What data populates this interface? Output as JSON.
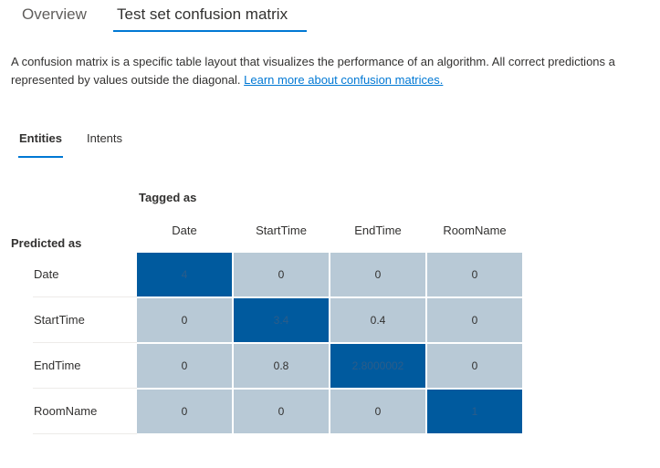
{
  "top_tabs": {
    "overview": "Overview",
    "confusion": "Test set confusion matrix"
  },
  "description": {
    "line1": "A confusion matrix is a specific table layout that visualizes the performance of an algorithm. All correct predictions a",
    "line2": "represented by values outside the diagonal.",
    "link": "Learn more about confusion matrices."
  },
  "sub_tabs": {
    "entities": "Entities",
    "intents": "Intents"
  },
  "matrix": {
    "tagged_as_label": "Tagged as",
    "predicted_as_label": "Predicted as",
    "columns": [
      "Date",
      "StartTime",
      "EndTime",
      "RoomName"
    ],
    "rows": [
      {
        "label": "Date",
        "values": [
          "4",
          "0",
          "0",
          "0"
        ]
      },
      {
        "label": "StartTime",
        "values": [
          "0",
          "3.4",
          "0.4",
          "0"
        ]
      },
      {
        "label": "EndTime",
        "values": [
          "0",
          "0.8",
          "2.8000002",
          "0"
        ]
      },
      {
        "label": "RoomName",
        "values": [
          "0",
          "0",
          "0",
          "1"
        ]
      }
    ],
    "colors": {
      "diagonal": "#005a9e",
      "off_diagonal": "#b8c9d6",
      "diagonal_text": "#2b5d8a",
      "off_diagonal_text": "#323130"
    }
  }
}
